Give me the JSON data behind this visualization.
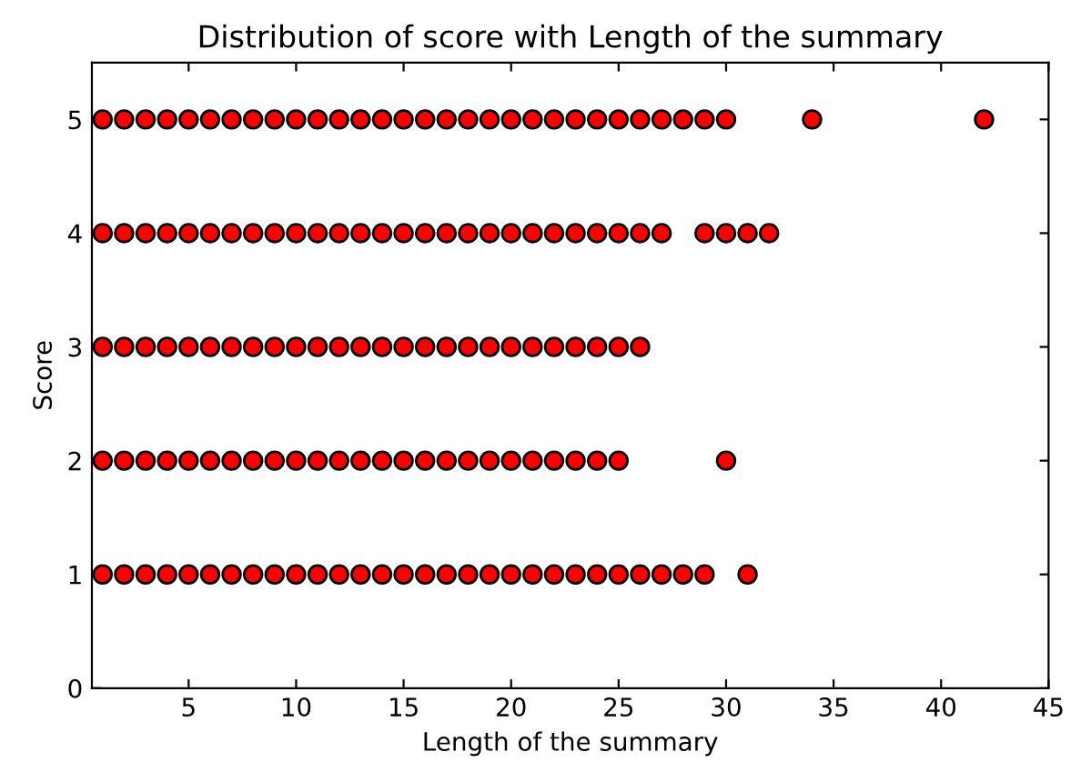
{
  "chart_data": {
    "type": "scatter",
    "title": "Distribution of score with Length of the summary",
    "xlabel": "Length of the summary",
    "ylabel": "Score",
    "series": [
      {
        "color": "#ff0000",
        "x": [
          1,
          2,
          3,
          4,
          5,
          6,
          7,
          8,
          9,
          10,
          11,
          12,
          13,
          14,
          15,
          16,
          17,
          18,
          19,
          20,
          21,
          22,
          23,
          24,
          25,
          26,
          27,
          28,
          29,
          30,
          34,
          42
        ],
        "values": [
          5,
          5,
          5,
          5,
          5,
          5,
          5,
          5,
          5,
          5,
          5,
          5,
          5,
          5,
          5,
          5,
          5,
          5,
          5,
          5,
          5,
          5,
          5,
          5,
          5,
          5,
          5,
          5,
          5,
          5,
          5,
          5
        ]
      },
      {
        "color": "#ff0000",
        "x": [
          1,
          2,
          3,
          4,
          5,
          6,
          7,
          8,
          9,
          10,
          11,
          12,
          13,
          14,
          15,
          16,
          17,
          18,
          19,
          20,
          21,
          22,
          23,
          24,
          25,
          26,
          27,
          29,
          30,
          31,
          32
        ],
        "values": [
          4,
          4,
          4,
          4,
          4,
          4,
          4,
          4,
          4,
          4,
          4,
          4,
          4,
          4,
          4,
          4,
          4,
          4,
          4,
          4,
          4,
          4,
          4,
          4,
          4,
          4,
          4,
          4,
          4,
          4,
          4
        ]
      },
      {
        "color": "#ff0000",
        "x": [
          1,
          2,
          3,
          4,
          5,
          6,
          7,
          8,
          9,
          10,
          11,
          12,
          13,
          14,
          15,
          16,
          17,
          18,
          19,
          20,
          21,
          22,
          23,
          24,
          25,
          26
        ],
        "values": [
          3,
          3,
          3,
          3,
          3,
          3,
          3,
          3,
          3,
          3,
          3,
          3,
          3,
          3,
          3,
          3,
          3,
          3,
          3,
          3,
          3,
          3,
          3,
          3,
          3,
          3
        ]
      },
      {
        "color": "#ff0000",
        "x": [
          1,
          2,
          3,
          4,
          5,
          6,
          7,
          8,
          9,
          10,
          11,
          12,
          13,
          14,
          15,
          16,
          17,
          18,
          19,
          20,
          21,
          22,
          23,
          24,
          25,
          30
        ],
        "values": [
          2,
          2,
          2,
          2,
          2,
          2,
          2,
          2,
          2,
          2,
          2,
          2,
          2,
          2,
          2,
          2,
          2,
          2,
          2,
          2,
          2,
          2,
          2,
          2,
          2,
          2
        ]
      },
      {
        "color": "#ff0000",
        "x": [
          1,
          2,
          3,
          4,
          5,
          6,
          7,
          8,
          9,
          10,
          11,
          12,
          13,
          14,
          15,
          16,
          17,
          18,
          19,
          20,
          21,
          22,
          23,
          24,
          25,
          26,
          27,
          28,
          29,
          31
        ],
        "values": [
          1,
          1,
          1,
          1,
          1,
          1,
          1,
          1,
          1,
          1,
          1,
          1,
          1,
          1,
          1,
          1,
          1,
          1,
          1,
          1,
          1,
          1,
          1,
          1,
          1,
          1,
          1,
          1,
          1,
          1
        ]
      }
    ],
    "xlim": [
      0.5,
      45
    ],
    "xticks": [
      5,
      10,
      15,
      20,
      25,
      30,
      35,
      40,
      45
    ],
    "ylim": [
      0,
      5.5
    ],
    "yticks": [
      0,
      1,
      2,
      3,
      4,
      5
    ],
    "marker": "circle",
    "grid": false
  }
}
